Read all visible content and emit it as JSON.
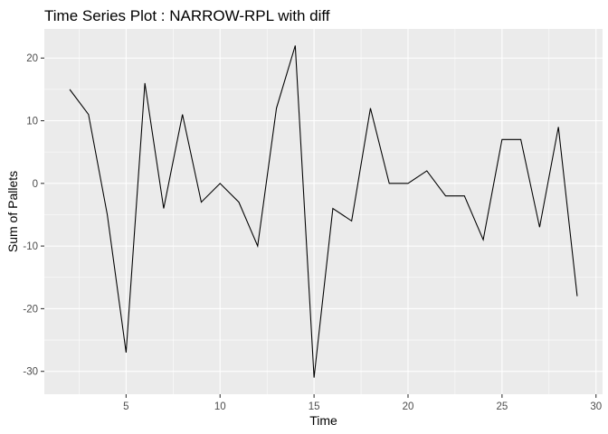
{
  "chart_data": {
    "type": "line",
    "title": "Time Series Plot : NARROW-RPL with diff",
    "xlabel": "Time",
    "ylabel": "Sum of Pallets",
    "xlim": [
      0.65,
      30.35
    ],
    "ylim": [
      -33.65,
      24.65
    ],
    "x_ticks": [
      5,
      10,
      15,
      20,
      25,
      30
    ],
    "y_ticks": [
      -30,
      -20,
      -10,
      0,
      10,
      20
    ],
    "grid": true,
    "legend": "none",
    "panel_background": "#ebebeb",
    "line_color": "#000000",
    "x": [
      2,
      3,
      4,
      5,
      6,
      7,
      8,
      9,
      10,
      11,
      12,
      13,
      14,
      15,
      16,
      17,
      18,
      19,
      20,
      21,
      22,
      23,
      24,
      25,
      26,
      27,
      28,
      29
    ],
    "y": [
      15,
      11,
      -5,
      -27,
      16,
      -4,
      11,
      -3,
      0,
      -3,
      -10,
      12,
      22,
      -31,
      -4,
      -6,
      12,
      0,
      0,
      2,
      -2,
      -2,
      -9,
      7,
      7,
      -7,
      9,
      -18
    ]
  }
}
